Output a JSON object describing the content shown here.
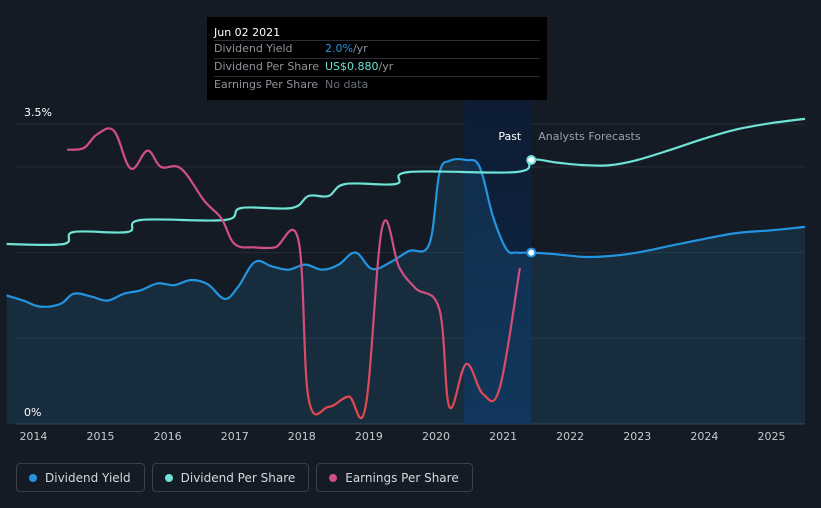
{
  "tooltip": {
    "date": "Jun 02 2021",
    "rows": [
      {
        "label": "Dividend Yield",
        "value": "2.0%",
        "unit": " /yr"
      },
      {
        "label": "Dividend Per Share",
        "value": "US$0.880",
        "unit": " /yr"
      },
      {
        "label": "Earnings Per Share",
        "value": "No data",
        "unit": ""
      }
    ]
  },
  "colors": {
    "dividend_yield": "#2394df",
    "dividend_per_share": "#6ee3d6",
    "earnings_per_share": "#d04f83",
    "earnings_negative": "#e2474b",
    "background": "#151b24"
  },
  "labels": {
    "past": "Past",
    "forecast": "Analysts Forecasts"
  },
  "legend": [
    {
      "label": "Dividend Yield",
      "color": "#2394df"
    },
    {
      "label": "Dividend Per Share",
      "color": "#6ee3d6"
    },
    {
      "label": "Earnings Per Share",
      "color": "#d04f83"
    }
  ],
  "chart_data": {
    "type": "line",
    "xlim": [
      2013.5,
      2025.5
    ],
    "ylim": [
      0,
      3.5
    ],
    "y_tick_labels": [
      "3.5%",
      "0%"
    ],
    "x_tick_labels": [
      "2014",
      "2015",
      "2016",
      "2017",
      "2018",
      "2019",
      "2020",
      "2021",
      "2022",
      "2023",
      "2024",
      "2025"
    ],
    "x_ticks": [
      2014,
      2015,
      2016,
      2017,
      2018,
      2019,
      2020,
      2021,
      2022,
      2023,
      2024,
      2025
    ],
    "past_end": 2021.42,
    "series": [
      {
        "name": "Dividend Yield",
        "unit": "%",
        "points": [
          [
            2013.6,
            1.5
          ],
          [
            2013.85,
            1.44
          ],
          [
            2014.1,
            1.37
          ],
          [
            2014.4,
            1.4
          ],
          [
            2014.6,
            1.52
          ],
          [
            2014.85,
            1.49
          ],
          [
            2015.1,
            1.44
          ],
          [
            2015.35,
            1.52
          ],
          [
            2015.6,
            1.56
          ],
          [
            2015.85,
            1.64
          ],
          [
            2016.1,
            1.62
          ],
          [
            2016.35,
            1.68
          ],
          [
            2016.6,
            1.63
          ],
          [
            2016.85,
            1.46
          ],
          [
            2017.05,
            1.6
          ],
          [
            2017.3,
            1.89
          ],
          [
            2017.55,
            1.84
          ],
          [
            2017.8,
            1.8
          ],
          [
            2018.05,
            1.86
          ],
          [
            2018.3,
            1.8
          ],
          [
            2018.55,
            1.86
          ],
          [
            2018.8,
            2.0
          ],
          [
            2019.05,
            1.81
          ],
          [
            2019.35,
            1.9
          ],
          [
            2019.6,
            2.02
          ],
          [
            2019.9,
            2.1
          ],
          [
            2020.05,
            2.92
          ],
          [
            2020.2,
            3.07
          ],
          [
            2020.45,
            3.08
          ],
          [
            2020.65,
            3.0
          ],
          [
            2020.85,
            2.42
          ],
          [
            2021.05,
            2.04
          ],
          [
            2021.2,
            2.0
          ],
          [
            2021.42,
            2.0
          ],
          [
            2021.8,
            1.98
          ],
          [
            2022.2,
            1.95
          ],
          [
            2022.6,
            1.96
          ],
          [
            2023.0,
            2.0
          ],
          [
            2023.5,
            2.08
          ],
          [
            2024.0,
            2.16
          ],
          [
            2024.5,
            2.23
          ],
          [
            2025.0,
            2.26
          ],
          [
            2025.5,
            2.3
          ]
        ]
      },
      {
        "name": "Dividend Per Share",
        "unit": "US$",
        "points": [
          [
            2013.6,
            2.1
          ],
          [
            2014.45,
            2.1
          ],
          [
            2014.6,
            2.24
          ],
          [
            2015.4,
            2.24
          ],
          [
            2015.6,
            2.38
          ],
          [
            2016.85,
            2.38
          ],
          [
            2017.1,
            2.52
          ],
          [
            2017.85,
            2.52
          ],
          [
            2018.1,
            2.66
          ],
          [
            2018.4,
            2.66
          ],
          [
            2018.65,
            2.8
          ],
          [
            2019.4,
            2.8
          ],
          [
            2019.6,
            2.94
          ],
          [
            2021.2,
            2.94
          ],
          [
            2021.42,
            3.08
          ],
          [
            2021.8,
            3.05
          ],
          [
            2022.2,
            3.02
          ],
          [
            2022.6,
            3.02
          ],
          [
            2023.0,
            3.08
          ],
          [
            2023.5,
            3.2
          ],
          [
            2024.0,
            3.33
          ],
          [
            2024.5,
            3.44
          ],
          [
            2025.0,
            3.51
          ],
          [
            2025.5,
            3.56
          ]
        ]
      },
      {
        "name": "Earnings Per Share",
        "unit": "US$",
        "points": [
          [
            2014.5,
            3.2
          ],
          [
            2014.75,
            3.22
          ],
          [
            2014.95,
            3.38
          ],
          [
            2015.2,
            3.42
          ],
          [
            2015.45,
            2.98
          ],
          [
            2015.7,
            3.19
          ],
          [
            2015.9,
            3.0
          ],
          [
            2016.2,
            2.98
          ],
          [
            2016.55,
            2.6
          ],
          [
            2016.8,
            2.4
          ],
          [
            2017.0,
            2.1
          ],
          [
            2017.3,
            2.06
          ],
          [
            2017.6,
            2.06
          ],
          [
            2017.95,
            2.14
          ],
          [
            2018.1,
            0.3
          ],
          [
            2018.4,
            0.2
          ],
          [
            2018.7,
            0.32
          ],
          [
            2018.95,
            0.2
          ],
          [
            2019.2,
            2.3
          ],
          [
            2019.45,
            1.83
          ],
          [
            2019.7,
            1.58
          ],
          [
            2020.05,
            1.34
          ],
          [
            2020.2,
            0.2
          ],
          [
            2020.45,
            0.7
          ],
          [
            2020.7,
            0.35
          ],
          [
            2020.95,
            0.42
          ],
          [
            2021.25,
            1.82
          ]
        ]
      }
    ]
  }
}
